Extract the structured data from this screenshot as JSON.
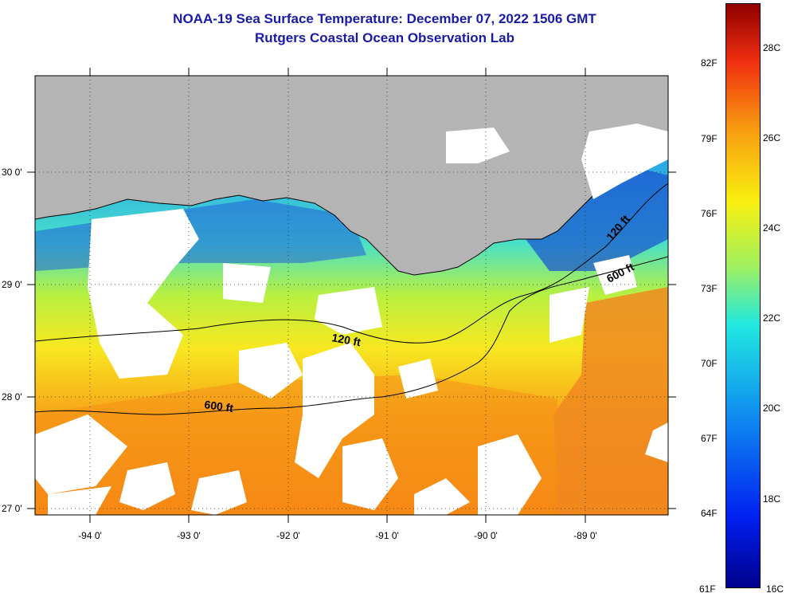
{
  "title": "NOAA-19 Sea Surface Temperature:  December 07, 2022 1506 GMT",
  "subtitle": "Rutgers Coastal Ocean Observation Lab",
  "map": {
    "lat_labels": [
      "30 0'",
      "29 0'",
      "28 0'",
      "27 0'"
    ],
    "lon_labels": [
      "-94 0'",
      "-93 0'",
      "-92 0'",
      "-91 0'",
      "-90 0'",
      "-89 0'"
    ],
    "contour_labels": [
      "120 ft",
      "600 ft",
      "120 ft",
      "600 ft"
    ],
    "colors": {
      "land": "#b4b4b4",
      "cloud": "#ffffff",
      "coast": "#000000"
    }
  },
  "colorbar": {
    "fahrenheit_labels": [
      "82F",
      "79F",
      "76F",
      "73F",
      "70F",
      "67F",
      "64F",
      "61F"
    ],
    "celsius_labels": [
      "28C",
      "26C",
      "24C",
      "22C",
      "20C",
      "18C",
      "16C"
    ],
    "range_c": [
      16,
      29
    ]
  }
}
